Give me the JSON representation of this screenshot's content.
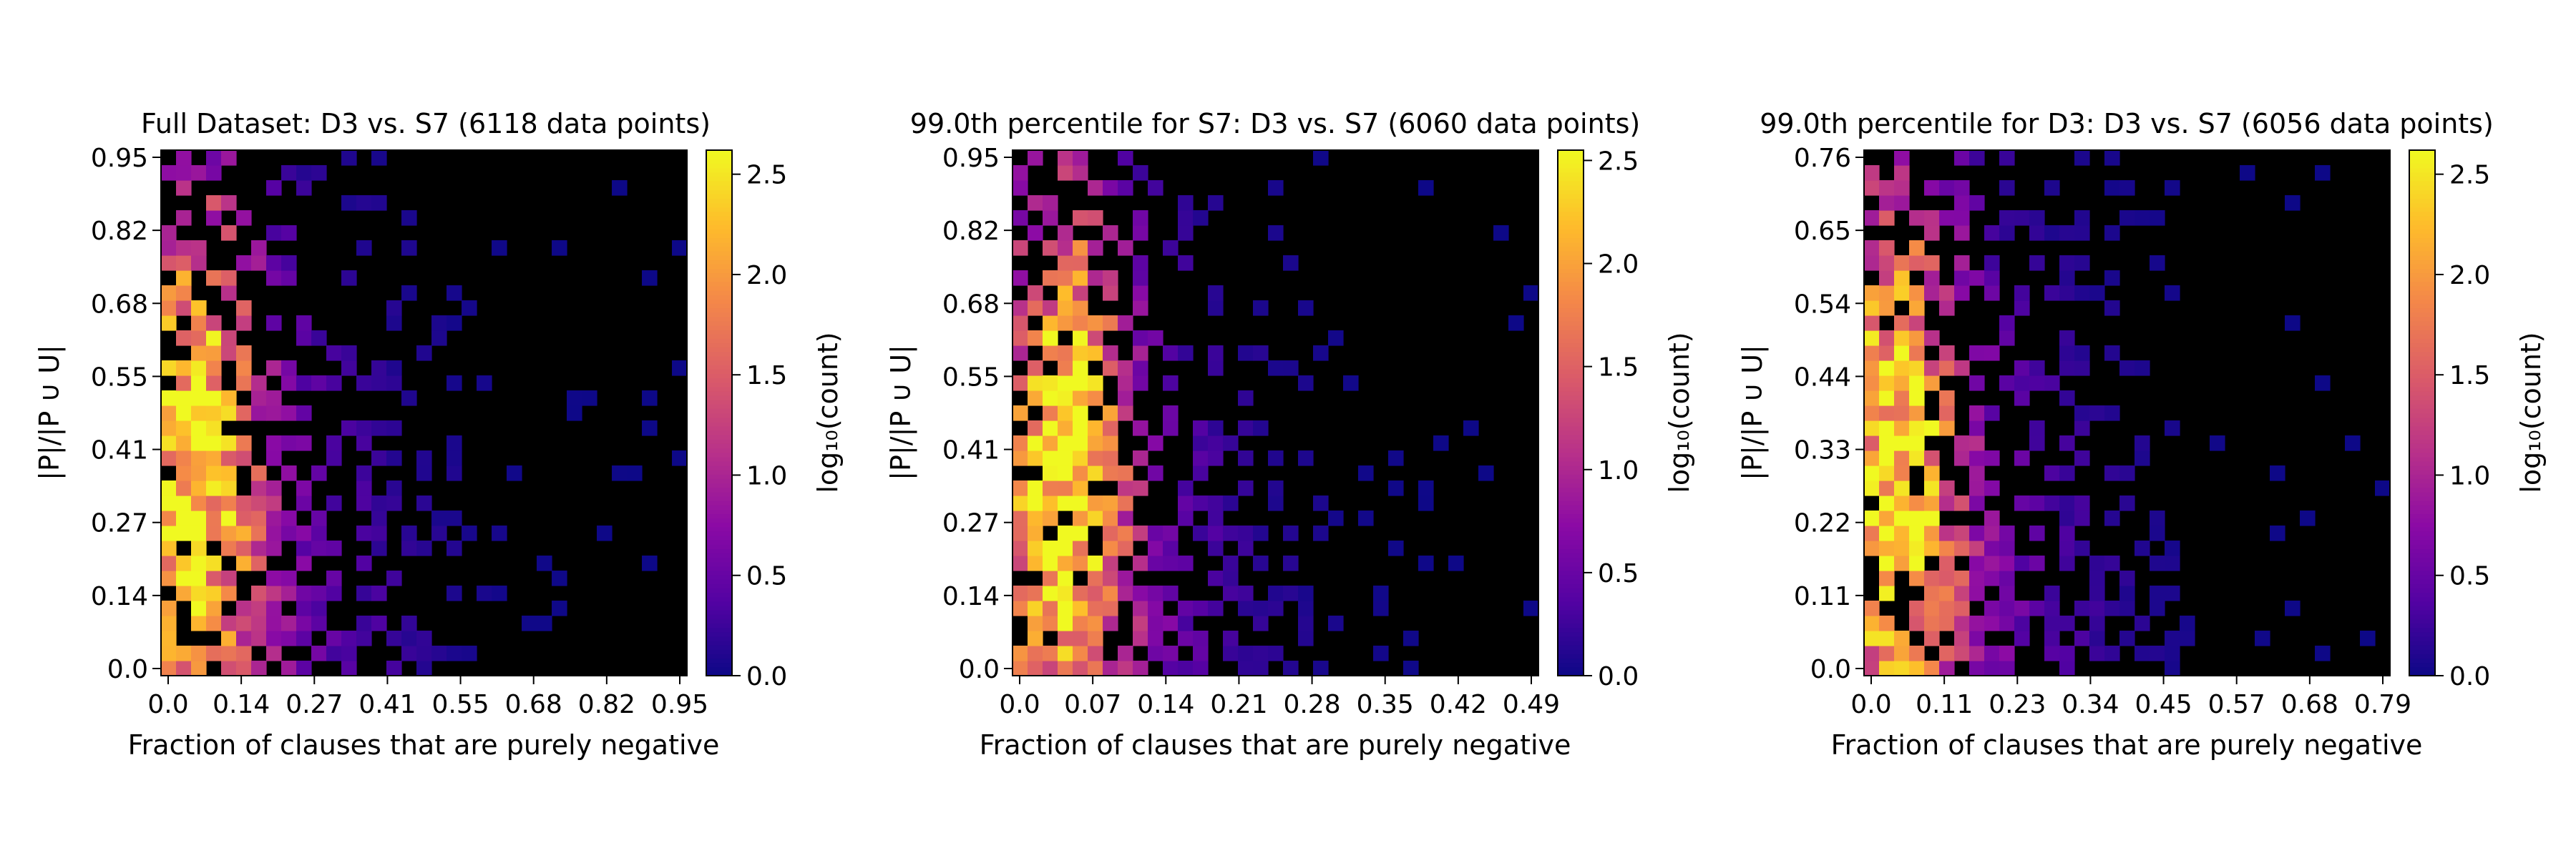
{
  "chart_data": [
    {
      "type": "heatmap",
      "title": "Full Dataset: D3 vs. S7 (6118 data points)",
      "xlabel": "Fraction of clauses that are purely negative",
      "ylabel": "|P|/|P ∪ U|",
      "x_ticks": [
        "0.0",
        "0.14",
        "0.27",
        "0.41",
        "0.55",
        "0.68",
        "0.82",
        "0.95"
      ],
      "y_ticks": [
        "0.0",
        "0.14",
        "0.27",
        "0.41",
        "0.55",
        "0.68",
        "0.82",
        "0.95"
      ],
      "xlim": [
        0,
        0.95
      ],
      "ylim": [
        0,
        0.95
      ],
      "colorbar": {
        "label": "log₁₀(count)",
        "ticks": [
          "0.0",
          "0.5",
          "1.0",
          "1.5",
          "2.0",
          "2.5"
        ],
        "range": [
          0,
          2.62
        ],
        "colormap": "plasma"
      },
      "bins": [
        35,
        35
      ],
      "cluster": {
        "x_center": 0.06,
        "y_center": 0.4,
        "max_log_count": 2.6
      }
    },
    {
      "type": "heatmap",
      "title": "99.0th percentile for S7: D3 vs. S7 (6060 data points)",
      "xlabel": "Fraction of clauses that are purely negative",
      "ylabel": "|P|/|P ∪ U|",
      "x_ticks": [
        "0.0",
        "0.07",
        "0.14",
        "0.21",
        "0.28",
        "0.35",
        "0.42",
        "0.49"
      ],
      "y_ticks": [
        "0.0",
        "0.14",
        "0.27",
        "0.41",
        "0.55",
        "0.68",
        "0.82",
        "0.95"
      ],
      "xlim": [
        0,
        0.49
      ],
      "ylim": [
        0,
        0.95
      ],
      "colorbar": {
        "label": "log₁₀(count)",
        "ticks": [
          "0.0",
          "0.5",
          "1.0",
          "1.5",
          "2.0",
          "2.5"
        ],
        "range": [
          0,
          2.55
        ],
        "colormap": "plasma"
      },
      "bins": [
        35,
        35
      ],
      "cluster": {
        "x_center": 0.05,
        "y_center": 0.4,
        "max_log_count": 2.55
      }
    },
    {
      "type": "heatmap",
      "title": "99.0th percentile for D3: D3 vs. S7 (6056 data points)",
      "xlabel": "Fraction of clauses that are purely negative",
      "ylabel": "|P|/|P ∪ U|",
      "x_ticks": [
        "0.0",
        "0.11",
        "0.23",
        "0.34",
        "0.45",
        "0.57",
        "0.68",
        "0.79"
      ],
      "y_ticks": [
        "0.0",
        "0.11",
        "0.22",
        "0.33",
        "0.44",
        "0.54",
        "0.65",
        "0.76"
      ],
      "xlim": [
        0,
        0.79
      ],
      "ylim": [
        0,
        0.76
      ],
      "colorbar": {
        "label": "log₁₀(count)",
        "ticks": [
          "0.0",
          "0.5",
          "1.0",
          "1.5",
          "2.0",
          "2.5"
        ],
        "range": [
          0,
          2.62
        ],
        "colormap": "plasma"
      },
      "bins": [
        35,
        35
      ],
      "cluster": {
        "x_center": 0.05,
        "y_center": 0.33,
        "max_log_count": 2.6
      }
    }
  ]
}
